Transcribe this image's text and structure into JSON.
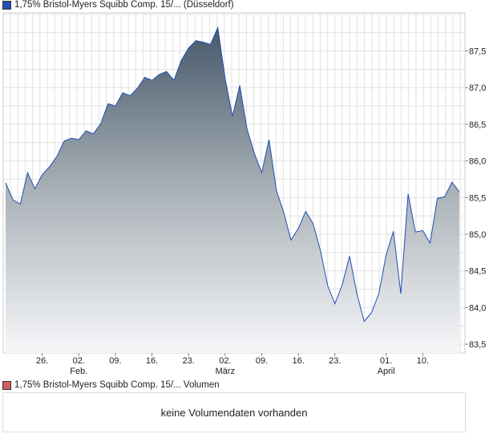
{
  "legend": {
    "price_label": "1,75% Bristol-Myers Squibb Comp. 15/... (Düsseldorf)",
    "price_color": "#1f4fb5",
    "volume_label": "1,75% Bristol-Myers Squibb Comp. 15/... Volumen",
    "volume_color": "#d06060"
  },
  "volume": {
    "empty_message": "keine Volumendaten vorhanden"
  },
  "chart_data": {
    "type": "area",
    "title": "1,75% Bristol-Myers Squibb Comp. 15/... (Düsseldorf)",
    "ylim": [
      83.38,
      88.02
    ],
    "yticks": [
      83.5,
      84.0,
      84.5,
      85.0,
      85.5,
      86.0,
      86.5,
      87.0,
      87.5
    ],
    "ytick_labels": [
      "83,5",
      "84,0",
      "84,5",
      "85,0",
      "85,5",
      "86,0",
      "86,5",
      "87,0",
      "87,5"
    ],
    "xticks": [
      {
        "label": "26.",
        "sub": "",
        "idx": 5
      },
      {
        "label": "02.",
        "sub": "Feb.",
        "idx": 10
      },
      {
        "label": "09.",
        "sub": "",
        "idx": 15
      },
      {
        "label": "16.",
        "sub": "",
        "idx": 20
      },
      {
        "label": "23.",
        "sub": "",
        "idx": 25
      },
      {
        "label": "02.",
        "sub": "März",
        "idx": 30
      },
      {
        "label": "09.",
        "sub": "",
        "idx": 35
      },
      {
        "label": "16.",
        "sub": "",
        "idx": 40
      },
      {
        "label": "23.",
        "sub": "",
        "idx": 45
      },
      {
        "label": "01.",
        "sub": "April",
        "idx": 52
      },
      {
        "label": "10.",
        "sub": "",
        "idx": 57
      }
    ],
    "values": [
      85.7,
      85.47,
      85.41,
      85.84,
      85.62,
      85.81,
      85.92,
      86.06,
      86.27,
      86.31,
      86.29,
      86.41,
      86.37,
      86.51,
      86.78,
      86.75,
      86.93,
      86.89,
      86.99,
      87.14,
      87.1,
      87.18,
      87.22,
      87.1,
      87.37,
      87.54,
      87.64,
      87.62,
      87.59,
      87.82,
      87.12,
      86.61,
      87.03,
      86.43,
      86.1,
      85.84,
      86.29,
      85.6,
      85.3,
      84.92,
      85.08,
      85.31,
      85.15,
      84.79,
      84.3,
      84.05,
      84.31,
      84.7,
      84.19,
      83.81,
      83.93,
      84.19,
      84.72,
      85.04,
      84.19,
      85.55,
      85.03,
      85.05,
      84.88,
      85.49,
      85.51,
      85.71,
      85.58
    ]
  }
}
